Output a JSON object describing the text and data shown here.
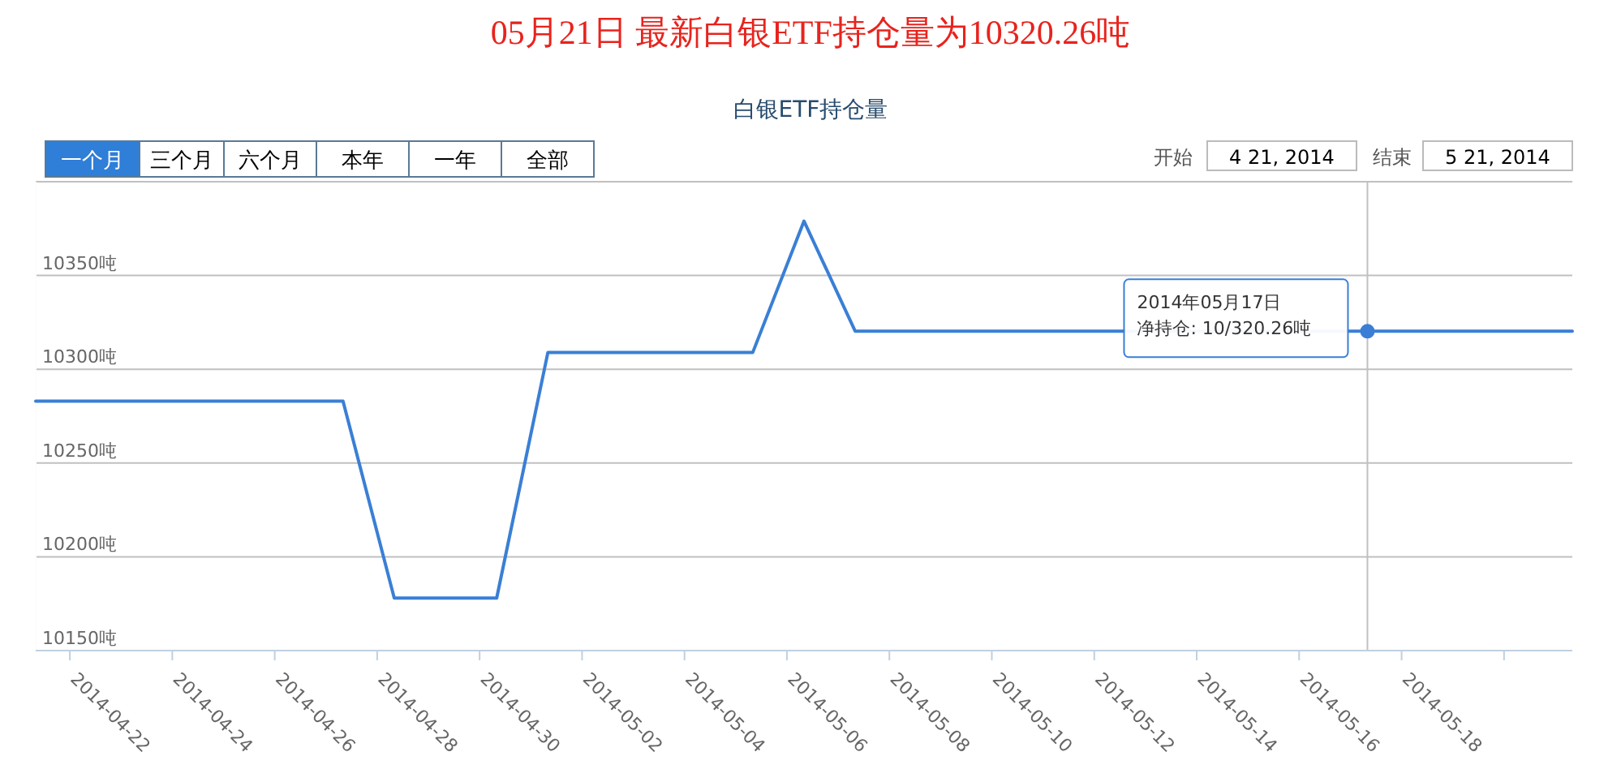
{
  "chart_data": {
    "type": "line",
    "title": "05月21日  最新白银ETF持仓量为10320.26吨",
    "subtitle": "白银ETF持仓量",
    "series": [
      {
        "color": "#3a7fd5",
        "x": [
          "2014-04-21T08:00",
          "2014-04-27T08:00",
          "2014-04-28T08:00",
          "2014-04-30T08:00",
          "2014-05-01T08:00",
          "2014-05-05T08:00",
          "2014-05-06T08:00",
          "2014-05-07T08:00",
          "2014-05-17T08:00",
          "2014-05-21T08:00"
        ],
        "values": [
          10283,
          10283,
          10178,
          10178,
          10309,
          10309,
          10379,
          10320.26,
          10320.26,
          10320.26
        ]
      }
    ],
    "xlim": [
      "2014-04-21T08:00",
      "2014-05-21T08:00"
    ],
    "xticks": [
      {
        "value": "2014-04-22",
        "label": "2014-04-22"
      },
      {
        "value": "2014-04-24",
        "label": "2014-04-24"
      },
      {
        "value": "2014-04-26",
        "label": "2014-04-26"
      },
      {
        "value": "2014-04-28",
        "label": "2014-04-28"
      },
      {
        "value": "2014-04-30",
        "label": "2014-04-30"
      },
      {
        "value": "2014-05-02",
        "label": "2014-05-02"
      },
      {
        "value": "2014-05-04",
        "label": "2014-05-04"
      },
      {
        "value": "2014-05-06",
        "label": "2014-05-06"
      },
      {
        "value": "2014-05-08",
        "label": "2014-05-08"
      },
      {
        "value": "2014-05-10",
        "label": "2014-05-10"
      },
      {
        "value": "2014-05-12",
        "label": "2014-05-12"
      },
      {
        "value": "2014-05-14",
        "label": "2014-05-14"
      },
      {
        "value": "2014-05-16",
        "label": "2014-05-16"
      },
      {
        "value": "2014-05-18",
        "label": "2014-05-18"
      },
      {
        "value": "2014-05-20",
        "label": null
      }
    ],
    "ylim": [
      10150,
      10400
    ],
    "yticks": [
      {
        "value": 10150,
        "label": "10150吨"
      },
      {
        "value": 10200,
        "label": "10200吨"
      },
      {
        "value": 10250,
        "label": "10250吨"
      },
      {
        "value": 10300,
        "label": "10300吨"
      },
      {
        "value": 10350,
        "label": "10350吨"
      },
      {
        "value": 10400,
        "label": null
      }
    ],
    "grid": "y",
    "marker": "none",
    "line_style": "solid",
    "ref_lines": [
      {
        "axis": "x",
        "value": "2014-05-17T08:00",
        "color": "#c0c0c0"
      }
    ],
    "annotations": [
      "2014年05月17日",
      "净持仓: 10/320.26吨",
      "一个月",
      "三个月",
      "六个月",
      "本年",
      "一年",
      "全部",
      "开始",
      "4 21, 2014",
      "结束",
      "5 21, 2014"
    ]
  }
}
